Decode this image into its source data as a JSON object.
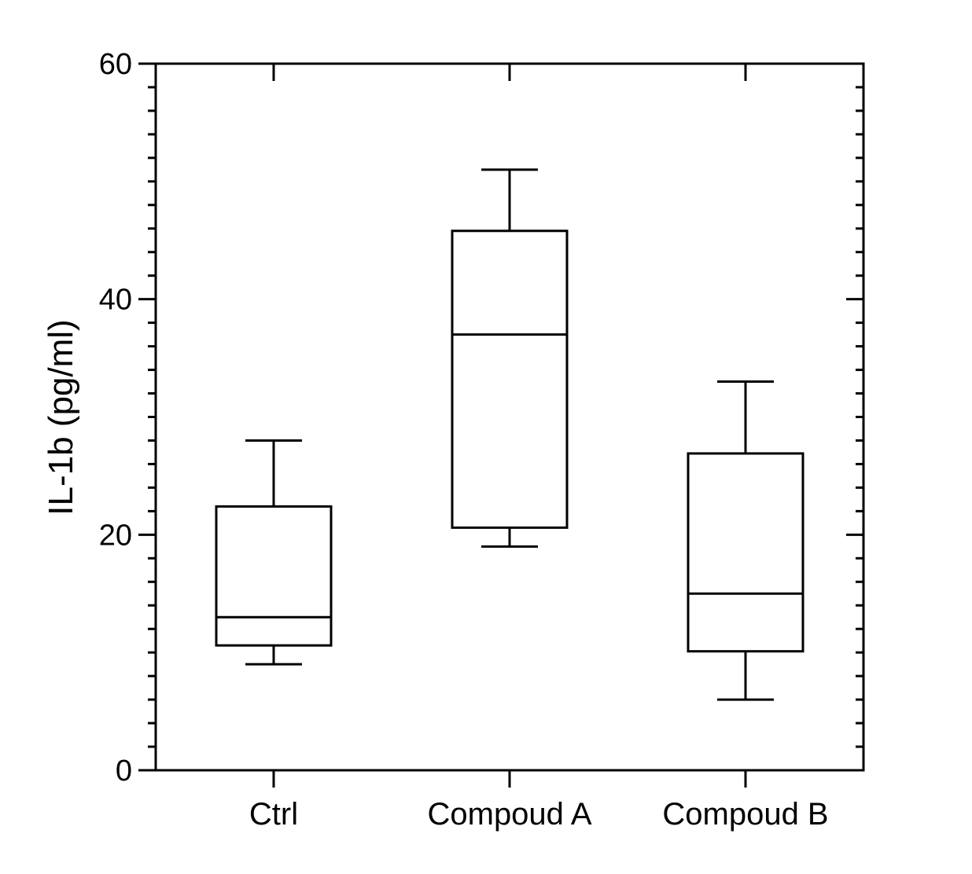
{
  "chart_data": {
    "type": "box",
    "title": "",
    "xlabel": "",
    "ylabel": "IL-1b (pg/ml)",
    "ylim": [
      0,
      60
    ],
    "y_major_ticks": [
      0,
      20,
      40,
      60
    ],
    "y_tick_labels": [
      "0",
      "20",
      "40",
      "60"
    ],
    "y_minor_step": 2,
    "grid": false,
    "frame": "full box",
    "colors": {
      "stroke": "#000000",
      "fill": "#ffffff"
    },
    "categories": [
      "Ctrl",
      "Compoud A",
      "Compoud B"
    ],
    "boxes": [
      {
        "category": "Ctrl",
        "min": 9.0,
        "q1": 10.6,
        "median": 13.0,
        "q3": 22.4,
        "max": 28.0
      },
      {
        "category": "Compoud A",
        "min": 19.0,
        "q1": 20.6,
        "median": 37.0,
        "q3": 45.8,
        "max": 51.0
      },
      {
        "category": "Compoud B",
        "min": 6.0,
        "q1": 10.1,
        "median": 15.0,
        "q3": 26.9,
        "max": 33.0
      }
    ]
  }
}
